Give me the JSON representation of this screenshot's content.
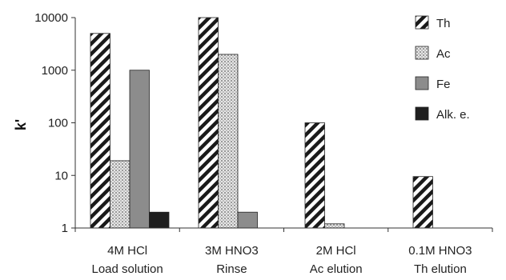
{
  "chart_data": {
    "type": "bar",
    "ylabel": "k'",
    "xlabel": "",
    "y_scale": "log",
    "ylim": [
      1,
      10000
    ],
    "yticks": [
      "1",
      "10",
      "100",
      "1000",
      "10000"
    ],
    "grid": false,
    "legend_position": "top-right",
    "categories": [
      {
        "line1": "4M HCl",
        "line2": "Load solution"
      },
      {
        "line1": "3M HNO3",
        "line2": "Rinse"
      },
      {
        "line1": "2M HCl",
        "line2": "Ac elution"
      },
      {
        "line1": "0.1M HNO3",
        "line2": "Th elution"
      }
    ],
    "series": [
      {
        "name": "Th",
        "pattern": "hatch",
        "values": [
          5000,
          10000,
          100,
          9.5
        ]
      },
      {
        "name": "Ac",
        "pattern": "dots",
        "values": [
          19,
          2000,
          1.2,
          null
        ]
      },
      {
        "name": "Fe",
        "pattern": "solid",
        "color": "#8c8c8c",
        "values": [
          1000,
          2,
          null,
          null
        ]
      },
      {
        "name": "Alk. e.",
        "pattern": "solid",
        "color": "#1f1f1f",
        "values": [
          2,
          null,
          null,
          null
        ]
      }
    ]
  }
}
